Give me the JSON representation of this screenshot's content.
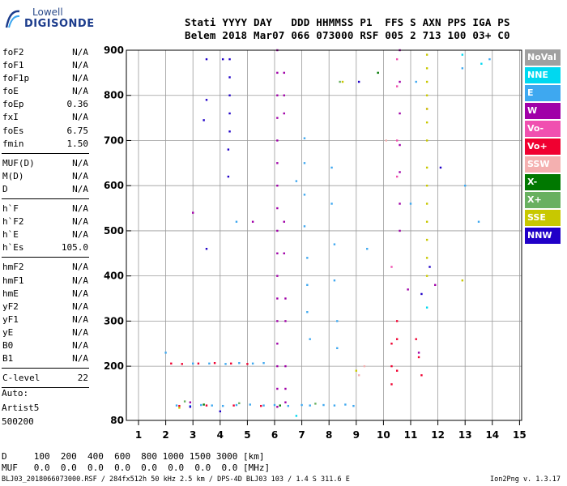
{
  "logo": {
    "top": "Lowell",
    "bottom": "DIGISONDE"
  },
  "header": {
    "labels": "Stati YYYY DAY   DDD HHMMSS P1  FFS S AXN PPS IGA PS",
    "values": "Belem 2018 Mar07 066 073000 RSF 005 2 713 100 03+ C0"
  },
  "params_group1": [
    {
      "k": "foF2",
      "v": "N/A"
    },
    {
      "k": "foF1",
      "v": "N/A"
    },
    {
      "k": "foF1p",
      "v": "N/A"
    },
    {
      "k": "foE",
      "v": "N/A"
    },
    {
      "k": "foEp",
      "v": "0.36"
    },
    {
      "k": "fxI",
      "v": "N/A"
    },
    {
      "k": "foEs",
      "v": "6.75"
    },
    {
      "k": "fmin",
      "v": "1.50"
    }
  ],
  "params_group2": [
    {
      "k": "MUF(D)",
      "v": "N/A"
    },
    {
      "k": "M(D)",
      "v": "N/A"
    },
    {
      "k": "D",
      "v": "N/A"
    }
  ],
  "params_group3": [
    {
      "k": "h`F",
      "v": "N/A"
    },
    {
      "k": "h`F2",
      "v": "N/A"
    },
    {
      "k": "h`E",
      "v": "N/A"
    },
    {
      "k": "h`Es",
      "v": "105.0"
    }
  ],
  "params_group4": [
    {
      "k": "hmF2",
      "v": "N/A"
    },
    {
      "k": "hmF1",
      "v": "N/A"
    },
    {
      "k": "hmE",
      "v": "N/A"
    },
    {
      "k": "yF2",
      "v": "N/A"
    },
    {
      "k": "yF1",
      "v": "N/A"
    },
    {
      "k": "yE",
      "v": "N/A"
    },
    {
      "k": "B0",
      "v": "N/A"
    },
    {
      "k": "B1",
      "v": "N/A"
    }
  ],
  "params_group5": [
    {
      "k": "C-level",
      "v": "22"
    }
  ],
  "auto": {
    "line1": "Auto:",
    "line2": "Artist5",
    "line3": "500200"
  },
  "legend": [
    {
      "label": "NoVal",
      "color": "#a0a0a0"
    },
    {
      "label": "NNE",
      "color": "#00d8f0"
    },
    {
      "label": "E",
      "color": "#3ea8f0"
    },
    {
      "label": "W",
      "color": "#a000a8"
    },
    {
      "label": "Vo-",
      "color": "#f050b0"
    },
    {
      "label": "Vo+",
      "color": "#f00030"
    },
    {
      "label": "SSW",
      "color": "#f4b0b0"
    },
    {
      "label": "X-",
      "color": "#007800"
    },
    {
      "label": "X+",
      "color": "#68b060"
    },
    {
      "label": "SSE",
      "color": "#c8c800"
    },
    {
      "label": "NNW",
      "color": "#2000c8"
    }
  ],
  "footer": {
    "d_row": "D     100  200  400  600  800 1000 1500 3000 [km]",
    "muf_row": "MUF   0.0  0.0  0.0  0.0  0.0  0.0  0.0  0.0 [MHz]",
    "id_line": "BLJ03_2018066073000.RSF / 284fx512h 50 kHz 2.5 km / DPS-4D BLJ03 103 / 1.4 S 311.6 E",
    "version": "Ion2Png v. 1.3.17"
  },
  "chart_data": {
    "type": "scatter",
    "xlim": [
      1,
      15
    ],
    "ylim": [
      80,
      900
    ],
    "x_ticks": [
      1,
      2,
      3,
      4,
      5,
      6,
      7,
      8,
      9,
      10,
      11,
      12,
      13,
      14,
      15
    ],
    "y_ticks": [
      80,
      200,
      300,
      400,
      500,
      600,
      700,
      800,
      900
    ],
    "grid": true,
    "series": [
      {
        "name": "E",
        "color": "#3ea8f0",
        "points": [
          [
            2.4,
            113
          ],
          [
            2.9,
            112
          ],
          [
            3.3,
            114
          ],
          [
            3.7,
            113
          ],
          [
            4.1,
            112
          ],
          [
            4.6,
            114
          ],
          [
            5.1,
            115
          ],
          [
            5.6,
            113
          ],
          [
            6.0,
            114
          ],
          [
            6.5,
            112
          ],
          [
            7.0,
            114
          ],
          [
            7.3,
            113
          ],
          [
            7.8,
            114
          ],
          [
            8.2,
            113
          ],
          [
            8.6,
            115
          ],
          [
            8.9,
            112
          ],
          [
            3.0,
            206
          ],
          [
            3.6,
            206
          ],
          [
            4.2,
            205
          ],
          [
            4.7,
            207
          ],
          [
            5.2,
            206
          ],
          [
            5.6,
            207
          ],
          [
            7.1,
            705
          ],
          [
            7.1,
            650
          ],
          [
            7.1,
            580
          ],
          [
            7.1,
            510
          ],
          [
            7.2,
            440
          ],
          [
            7.2,
            380
          ],
          [
            7.2,
            320
          ],
          [
            7.3,
            260
          ],
          [
            8.1,
            640
          ],
          [
            8.1,
            560
          ],
          [
            8.2,
            470
          ],
          [
            8.2,
            390
          ],
          [
            8.3,
            300
          ],
          [
            8.3,
            240
          ],
          [
            6.8,
            610
          ],
          [
            4.6,
            520
          ],
          [
            2.0,
            230
          ],
          [
            12.9,
            860
          ],
          [
            13.0,
            600
          ],
          [
            13.5,
            520
          ],
          [
            13.9,
            880
          ],
          [
            11.0,
            560
          ],
          [
            11.2,
            830
          ],
          [
            9.4,
            460
          ]
        ]
      },
      {
        "name": "W",
        "color": "#a000a8",
        "points": [
          [
            6.1,
            900
          ],
          [
            6.1,
            850
          ],
          [
            6.1,
            800
          ],
          [
            6.1,
            750
          ],
          [
            6.1,
            700
          ],
          [
            6.1,
            650
          ],
          [
            6.1,
            600
          ],
          [
            6.1,
            550
          ],
          [
            6.1,
            500
          ],
          [
            6.1,
            450
          ],
          [
            6.1,
            400
          ],
          [
            6.1,
            350
          ],
          [
            6.1,
            300
          ],
          [
            6.1,
            250
          ],
          [
            6.1,
            200
          ],
          [
            6.1,
            150
          ],
          [
            6.1,
            110
          ],
          [
            6.35,
            850
          ],
          [
            6.35,
            800
          ],
          [
            6.35,
            760
          ],
          [
            6.35,
            520
          ],
          [
            6.35,
            450
          ],
          [
            6.4,
            350
          ],
          [
            6.4,
            300
          ],
          [
            6.4,
            200
          ],
          [
            6.4,
            150
          ],
          [
            6.4,
            120
          ],
          [
            10.6,
            900
          ],
          [
            10.6,
            830
          ],
          [
            10.6,
            760
          ],
          [
            10.6,
            690
          ],
          [
            10.6,
            630
          ],
          [
            10.6,
            560
          ],
          [
            10.6,
            500
          ],
          [
            3.0,
            540
          ],
          [
            5.2,
            520
          ],
          [
            2.9,
            120
          ],
          [
            11.3,
            230
          ],
          [
            11.9,
            380
          ],
          [
            10.9,
            370
          ]
        ]
      },
      {
        "name": "Vo-",
        "color": "#f050b0",
        "points": [
          [
            10.5,
            880
          ],
          [
            10.5,
            820
          ],
          [
            10.5,
            700
          ],
          [
            10.5,
            620
          ],
          [
            10.3,
            420
          ],
          [
            11.6,
            770
          ]
        ]
      },
      {
        "name": "Vo+",
        "color": "#f00030",
        "points": [
          [
            2.2,
            206
          ],
          [
            2.6,
            205
          ],
          [
            3.2,
            206
          ],
          [
            3.8,
            207
          ],
          [
            4.4,
            206
          ],
          [
            5.0,
            205
          ],
          [
            10.3,
            250
          ],
          [
            10.3,
            200
          ],
          [
            10.3,
            160
          ],
          [
            10.5,
            300
          ],
          [
            10.5,
            260
          ],
          [
            10.5,
            190
          ],
          [
            11.2,
            260
          ],
          [
            11.3,
            220
          ],
          [
            11.4,
            180
          ],
          [
            2.5,
            112
          ],
          [
            3.5,
            113
          ],
          [
            4.5,
            113
          ],
          [
            5.5,
            112
          ]
        ]
      },
      {
        "name": "NNW",
        "color": "#2000c8",
        "points": [
          [
            4.35,
            880
          ],
          [
            4.35,
            840
          ],
          [
            4.35,
            800
          ],
          [
            4.35,
            760
          ],
          [
            4.35,
            720
          ],
          [
            4.3,
            680
          ],
          [
            4.3,
            620
          ],
          [
            3.5,
            790
          ],
          [
            3.4,
            745
          ],
          [
            3.5,
            880
          ],
          [
            4.1,
            880
          ],
          [
            3.5,
            460
          ],
          [
            2.9,
            110
          ],
          [
            4.0,
            100
          ],
          [
            9.1,
            830
          ],
          [
            12.1,
            640
          ],
          [
            11.7,
            420
          ],
          [
            11.4,
            360
          ]
        ]
      },
      {
        "name": "SSE",
        "color": "#c8c800",
        "points": [
          [
            11.6,
            890
          ],
          [
            11.6,
            860
          ],
          [
            11.6,
            830
          ],
          [
            11.6,
            800
          ],
          [
            11.6,
            770
          ],
          [
            11.6,
            740
          ],
          [
            11.6,
            700
          ],
          [
            11.6,
            640
          ],
          [
            11.6,
            600
          ],
          [
            11.6,
            560
          ],
          [
            11.6,
            520
          ],
          [
            11.6,
            480
          ],
          [
            11.6,
            440
          ],
          [
            11.6,
            400
          ],
          [
            8.5,
            830
          ],
          [
            9.0,
            190
          ],
          [
            12.9,
            390
          ],
          [
            2.5,
            108
          ]
        ]
      },
      {
        "name": "X-",
        "color": "#007800",
        "points": [
          [
            9.8,
            850
          ],
          [
            3.4,
            115
          ],
          [
            6.2,
            113
          ]
        ]
      },
      {
        "name": "X+",
        "color": "#68b060",
        "points": [
          [
            8.4,
            830
          ],
          [
            2.7,
            122
          ],
          [
            4.7,
            118
          ],
          [
            7.5,
            117
          ]
        ]
      },
      {
        "name": "NNE",
        "color": "#00d8f0",
        "points": [
          [
            11.6,
            330
          ],
          [
            12.9,
            890
          ],
          [
            13.6,
            870
          ],
          [
            6.8,
            90
          ]
        ]
      },
      {
        "name": "SSW",
        "color": "#f4b0b0",
        "points": [
          [
            9.3,
            200
          ],
          [
            9.1,
            180
          ],
          [
            10.1,
            700
          ]
        ]
      }
    ]
  }
}
